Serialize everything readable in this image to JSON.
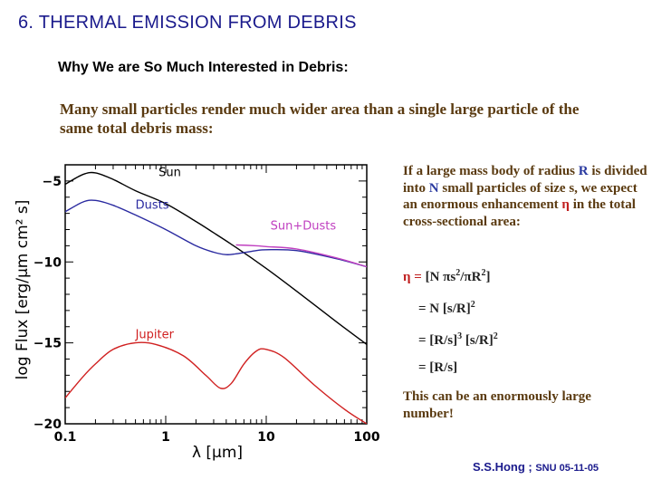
{
  "slide": {
    "title": "6. THERMAL EMISSION FROM DEBRIS",
    "subtitle": "Why We are So Much Interested in Debris:",
    "intro": "Many small particles render much wider area than a single large particle of the same total debris mass:"
  },
  "text_panel": {
    "p1_a": "If a large mass body of radius ",
    "p1_R": "R",
    "p1_b": " is divided into ",
    "p1_N": "N",
    "p1_c": " small particles of size s, we expect an enormous enhancement ",
    "p1_eta": "η",
    "p1_d": " in the total cross-sectional area:",
    "eq_main_lhs": "η =",
    "eq_main_rhs_a": "[N πs",
    "eq_main_rhs_sup1": "2",
    "eq_main_rhs_b": "/πR",
    "eq_main_rhs_sup2": "2",
    "eq_main_rhs_c": "]",
    "eq1_a": "= N [s/R]",
    "eq1_sup": "2",
    "eq2_a": "= [R/s]",
    "eq2_sup1": "3",
    "eq2_b": " [s/R]",
    "eq2_sup2": "2",
    "eq3": "= [R/s]",
    "conclusion": "This can be an enormously large number!"
  },
  "credit": {
    "author": "S.S.Hong ;",
    "institution": "SNU 05-11-05"
  },
  "chart_data": {
    "type": "line",
    "xscale": "log",
    "xlabel": "λ [μm]",
    "ylabel": "log Flux [erg/μm cm² s]",
    "xlim": [
      0.1,
      100
    ],
    "ylim": [
      -20,
      -4
    ],
    "xticks": [
      0.1,
      1,
      10,
      100
    ],
    "xtick_labels": [
      "0.1",
      "1",
      "10",
      "100"
    ],
    "yticks": [
      -5,
      -10,
      -15,
      -20
    ],
    "ytick_labels": [
      "−5",
      "−10",
      "−15",
      "−20"
    ],
    "grid": false,
    "series": [
      {
        "name": "Sun",
        "color": "#000000",
        "label_at": [
          0.85,
          -4.7
        ],
        "points": [
          [
            0.1,
            -5.2
          ],
          [
            0.15,
            -4.6
          ],
          [
            0.2,
            -4.5
          ],
          [
            0.3,
            -4.9
          ],
          [
            0.5,
            -5.6
          ],
          [
            1,
            -6.4
          ],
          [
            2,
            -7.5
          ],
          [
            3,
            -8.2
          ],
          [
            5,
            -9.1
          ],
          [
            10,
            -10.4
          ],
          [
            20,
            -11.8
          ],
          [
            50,
            -13.7
          ],
          [
            100,
            -15.1
          ]
        ]
      },
      {
        "name": "Dusts",
        "color": "#2a2aa0",
        "label_at": [
          0.5,
          -6.7
        ],
        "points": [
          [
            0.1,
            -6.9
          ],
          [
            0.15,
            -6.3
          ],
          [
            0.2,
            -6.2
          ],
          [
            0.3,
            -6.5
          ],
          [
            0.5,
            -7.1
          ],
          [
            1,
            -8.0
          ],
          [
            2,
            -9.0
          ],
          [
            3,
            -9.4
          ],
          [
            4,
            -9.55
          ],
          [
            5,
            -9.5
          ],
          [
            8,
            -9.3
          ],
          [
            10,
            -9.25
          ],
          [
            20,
            -9.3
          ],
          [
            50,
            -9.8
          ],
          [
            100,
            -10.3
          ]
        ]
      },
      {
        "name": "Sun+Dusts",
        "color": "#c040c0",
        "label_at": [
          11,
          -8.0
        ],
        "points": [
          [
            5,
            -8.95
          ],
          [
            8,
            -9.0
          ],
          [
            10,
            -9.05
          ],
          [
            20,
            -9.2
          ],
          [
            50,
            -9.75
          ],
          [
            100,
            -10.3
          ]
        ]
      },
      {
        "name": "Jupiter",
        "color": "#d02020",
        "label_at": [
          0.5,
          -14.7
        ],
        "points": [
          [
            0.1,
            -18.4
          ],
          [
            0.15,
            -17.1
          ],
          [
            0.2,
            -16.3
          ],
          [
            0.3,
            -15.4
          ],
          [
            0.5,
            -15.0
          ],
          [
            0.8,
            -15.1
          ],
          [
            1.5,
            -15.8
          ],
          [
            2.5,
            -17.0
          ],
          [
            3.5,
            -17.8
          ],
          [
            4.5,
            -17.5
          ],
          [
            6,
            -16.3
          ],
          [
            8,
            -15.5
          ],
          [
            10,
            -15.4
          ],
          [
            15,
            -15.9
          ],
          [
            30,
            -17.6
          ],
          [
            60,
            -19.1
          ],
          [
            100,
            -20.0
          ]
        ]
      }
    ]
  }
}
